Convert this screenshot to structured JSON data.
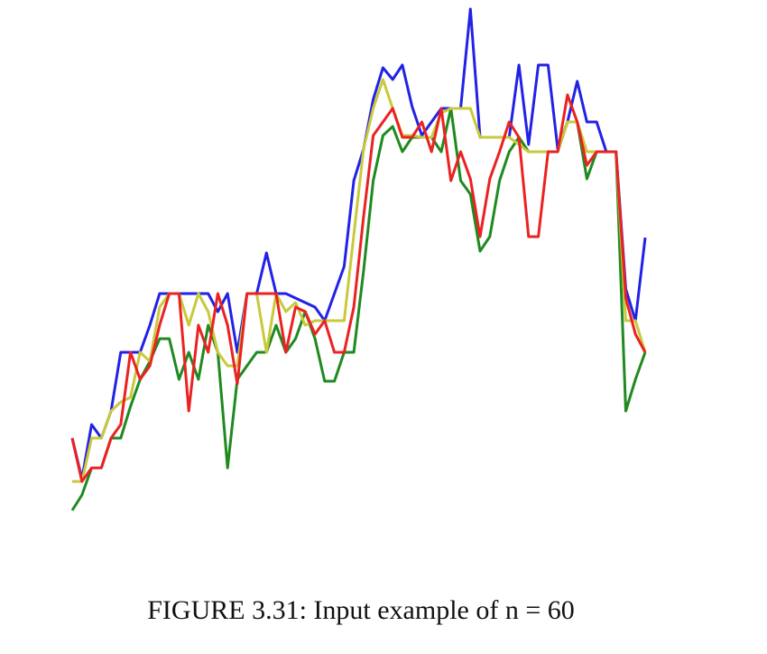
{
  "chart_data": {
    "type": "line",
    "caption": "FIGURE 3.31: Input example of n = 60",
    "ylim": [
      0,
      600
    ],
    "series": [
      {
        "color": "#2222e6",
        "values": [
          115,
          70,
          130,
          115,
          145,
          210,
          210,
          210,
          240,
          275,
          275,
          275,
          275,
          275,
          275,
          255,
          275,
          210,
          275,
          275,
          320,
          275,
          275,
          270,
          265,
          260,
          245,
          275,
          305,
          400,
          435,
          490,
          525,
          512,
          528,
          482,
          450,
          465,
          480,
          480,
          480,
          590,
          448,
          448,
          448,
          448,
          528,
          440,
          528,
          528,
          435,
          465,
          510,
          465,
          465,
          432,
          432,
          280,
          245,
          337
        ]
      },
      {
        "color": "#1f8a1f",
        "values": [
          35,
          52,
          82,
          82,
          115,
          115,
          150,
          180,
          200,
          225,
          225,
          180,
          210,
          180,
          240,
          210,
          82,
          180,
          195,
          210,
          210,
          240,
          210,
          225,
          255,
          225,
          178,
          178,
          210,
          210,
          300,
          400,
          450,
          460,
          432,
          448,
          448,
          448,
          432,
          480,
          400,
          385,
          322,
          338,
          400,
          432,
          448,
          432,
          432,
          432,
          432,
          465,
          465,
          402,
          432,
          432,
          432,
          145,
          180,
          210
        ]
      },
      {
        "color": "#c9c93c",
        "values": [
          67,
          67,
          115,
          115,
          145,
          155,
          160,
          210,
          200,
          260,
          275,
          275,
          240,
          275,
          255,
          210,
          195,
          195,
          275,
          275,
          210,
          275,
          255,
          265,
          240,
          245,
          245,
          245,
          245,
          340,
          435,
          480,
          512,
          480,
          450,
          450,
          448,
          448,
          475,
          480,
          480,
          480,
          448,
          448,
          448,
          448,
          440,
          432,
          432,
          432,
          432,
          465,
          465,
          432,
          432,
          432,
          432,
          245,
          245,
          210
        ]
      },
      {
        "color": "#ea2222",
        "values": [
          115,
          67,
          82,
          82,
          115,
          130,
          210,
          180,
          195,
          240,
          275,
          275,
          145,
          240,
          210,
          275,
          240,
          175,
          275,
          275,
          275,
          275,
          210,
          260,
          255,
          230,
          245,
          210,
          210,
          260,
          360,
          450,
          465,
          480,
          448,
          448,
          465,
          432,
          480,
          400,
          432,
          402,
          338,
          402,
          432,
          465,
          448,
          338,
          338,
          432,
          432,
          495,
          465,
          417,
          432,
          432,
          432,
          270,
          230,
          210
        ]
      }
    ]
  }
}
